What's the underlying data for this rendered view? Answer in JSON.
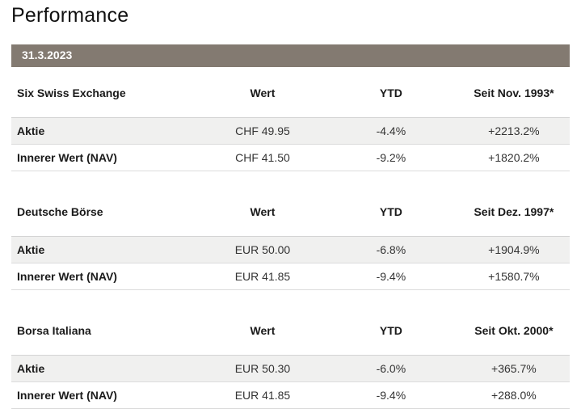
{
  "page": {
    "title": "Performance"
  },
  "date_bar": {
    "label": "31.3.2023",
    "background_color": "#837a71",
    "text_color": "#ffffff"
  },
  "colors": {
    "shaded_row_background": "#f0f0ef",
    "row_border": "#dcdcdc",
    "header_border": "#d4d4d4",
    "heading_text": "#1a1a1a",
    "value_text": "#333333"
  },
  "tables": [
    {
      "name": "Six Swiss Exchange",
      "columns": [
        "Wert",
        "YTD",
        "Seit Nov. 1993*"
      ],
      "rows": [
        {
          "label": "Aktie",
          "values": [
            "CHF 49.95",
            "-4.4%",
            "+2213.2%"
          ]
        },
        {
          "label": "Innerer Wert (NAV)",
          "values": [
            "CHF 41.50",
            "-9.2%",
            "+1820.2%"
          ]
        }
      ]
    },
    {
      "name": "Deutsche Börse",
      "columns": [
        "Wert",
        "YTD",
        "Seit Dez. 1997*"
      ],
      "rows": [
        {
          "label": "Aktie",
          "values": [
            "EUR 50.00",
            "-6.8%",
            "+1904.9%"
          ]
        },
        {
          "label": "Innerer Wert (NAV)",
          "values": [
            "EUR 41.85",
            "-9.4%",
            "+1580.7%"
          ]
        }
      ]
    },
    {
      "name": "Borsa Italiana",
      "columns": [
        "Wert",
        "YTD",
        "Seit Okt. 2000*"
      ],
      "rows": [
        {
          "label": "Aktie",
          "values": [
            "EUR 50.30",
            "-6.0%",
            "+365.7%"
          ]
        },
        {
          "label": "Innerer Wert (NAV)",
          "values": [
            "EUR 41.85",
            "-9.4%",
            "+288.0%"
          ]
        }
      ]
    }
  ]
}
